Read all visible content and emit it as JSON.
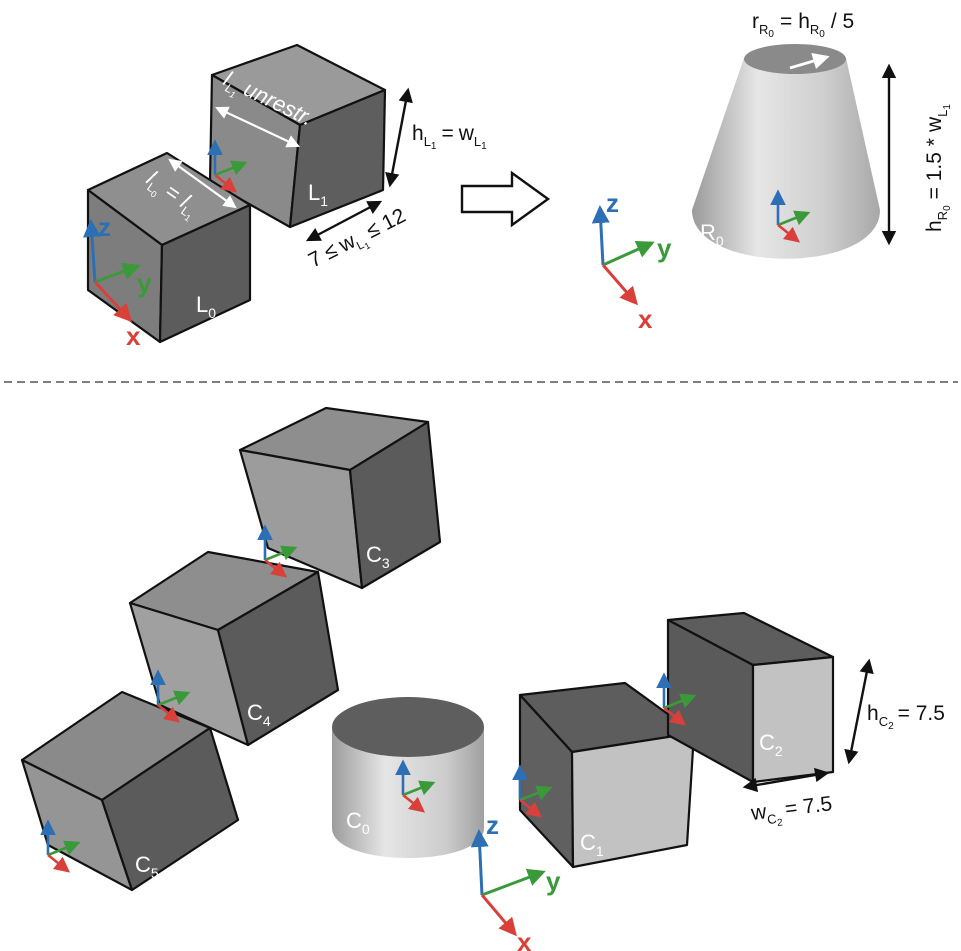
{
  "colors": {
    "axis_x": "#d9403a",
    "axis_y": "#3a9a3a",
    "axis_z": "#2c6fb5",
    "face_top": "#8c8c8c",
    "face_left": "#7a7a7a",
    "face_right": "#5c5c5c",
    "face_light": "#c4c4c4",
    "divider": "#555555"
  },
  "top": {
    "cube_l0": {
      "label": "L",
      "sub": "0"
    },
    "cube_l1": {
      "label": "L",
      "sub": "1"
    },
    "cone_r0": {
      "label": "R",
      "sub": "0"
    },
    "ann_l0_eq_l1": {
      "a": "l",
      "a_sub": "L",
      "a_subsub": "0",
      "eq": "=",
      "b": "l",
      "b_sub": "L",
      "b_subsub": "1"
    },
    "ann_l1_unrestr": {
      "a": "l",
      "a_sub": "L",
      "a_subsub": "1",
      "text": "unrestr."
    },
    "ann_h_l1": {
      "h": "h",
      "h_sub": "L",
      "h_subsub": "1",
      "eq": "=",
      "w": "w",
      "w_sub": "L",
      "w_subsub": "1"
    },
    "ann_w_l1_range": {
      "lo": "7 ≤",
      "w": "w",
      "w_sub": "L",
      "w_subsub": "1",
      "hi": "≤ 12"
    },
    "ann_r_r0": {
      "r": "r",
      "r_sub": "R",
      "r_subsub": "0",
      "eq": "=",
      "h": "h",
      "h_sub": "R",
      "h_subsub": "0",
      "tail": "/ 5"
    },
    "ann_h_r0": {
      "h": "h",
      "h_sub": "R",
      "h_subsub": "0",
      "mid": "= 1.5 *",
      "w": "w",
      "w_sub": "L",
      "w_subsub": "1"
    },
    "frame_axes": {
      "x": "x",
      "y": "y",
      "z": "z"
    }
  },
  "bottom": {
    "cube_c1": {
      "label": "C",
      "sub": "1"
    },
    "cube_c2": {
      "label": "C",
      "sub": "2"
    },
    "cube_c3": {
      "label": "C",
      "sub": "3"
    },
    "cube_c4": {
      "label": "C",
      "sub": "4"
    },
    "cube_c5": {
      "label": "C",
      "sub": "5"
    },
    "cyl_c0": {
      "label": "C",
      "sub": "0"
    },
    "ann_h_c2": {
      "h": "h",
      "h_sub": "C",
      "h_subsub": "2",
      "tail": "= 7.5"
    },
    "ann_w_c2": {
      "w": "w",
      "w_sub": "C",
      "w_subsub": "2",
      "tail": "= 7.5"
    },
    "frame_axes": {
      "x": "x",
      "y": "y",
      "z": "z"
    }
  }
}
